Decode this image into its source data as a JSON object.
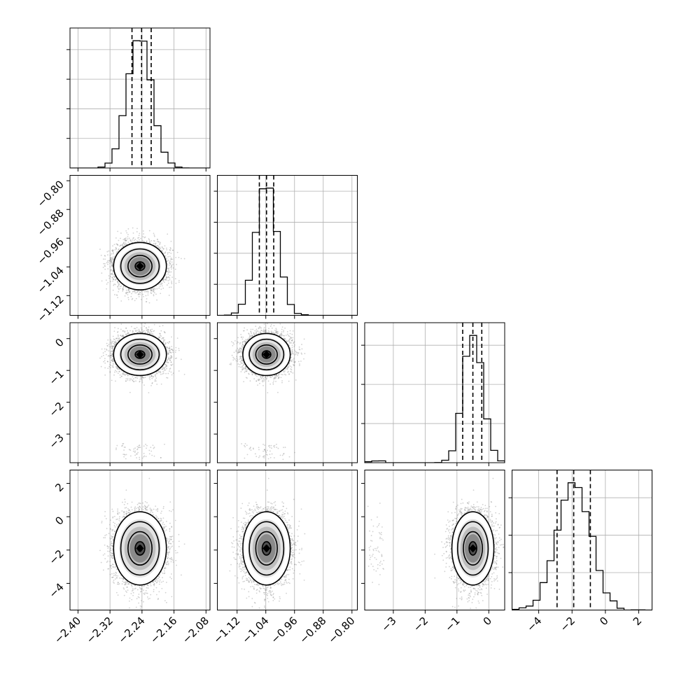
{
  "chart_data": {
    "type": "corner",
    "params": [
      {
        "range": [
          -2.42,
          -2.07
        ],
        "ticks": [
          -2.4,
          -2.32,
          -2.24,
          -2.16,
          -2.08
        ],
        "tick_labels": [
          "−2.40",
          "−2.32",
          "−2.24",
          "−2.16",
          "−2.08"
        ],
        "mean": -2.245,
        "sigma": 0.03,
        "quantiles": [
          -2.265,
          -2.241,
          -2.217
        ],
        "hist_y_ticks": [
          500,
          1000,
          1500,
          2000
        ],
        "hist_max": 2150
      },
      {
        "range": [
          -1.175,
          -0.785
        ],
        "ticks": [
          -1.12,
          -1.04,
          -0.96,
          -0.88,
          -0.8
        ],
        "tick_labels": [
          "−1.12",
          "−1.04",
          "−0.96",
          "−0.88",
          "−0.80"
        ],
        "mean": -1.038,
        "sigma": 0.03,
        "quantiles": [
          -1.058,
          -1.038,
          -1.018
        ],
        "hist_y_ticks": [
          500,
          1000,
          1500,
          2000
        ],
        "hist_max": 2050
      },
      {
        "range": [
          -3.9,
          0.5
        ],
        "ticks": [
          -3,
          -2,
          -1,
          0
        ],
        "tick_labels": [
          "−3",
          "−2",
          "−1",
          "0"
        ],
        "mean": -0.5,
        "sigma": 0.3,
        "quantiles": [
          -0.82,
          -0.5,
          -0.22
        ],
        "hist_y_ticks": [
          1000,
          2000,
          3000
        ],
        "hist_max": 3250
      },
      {
        "range": [
          -5.6,
          2.8
        ],
        "ticks": [
          -4,
          -2,
          0,
          2
        ],
        "tick_labels": [
          "−4",
          "−2",
          "0",
          "2"
        ],
        "mean": -1.9,
        "sigma": 1.0,
        "quantiles": [
          -2.9,
          -1.9,
          -0.9
        ],
        "hist_y_ticks": [
          500,
          1000,
          1500
        ],
        "hist_max": 1700
      }
    ],
    "grid": true,
    "samples": 20000
  }
}
